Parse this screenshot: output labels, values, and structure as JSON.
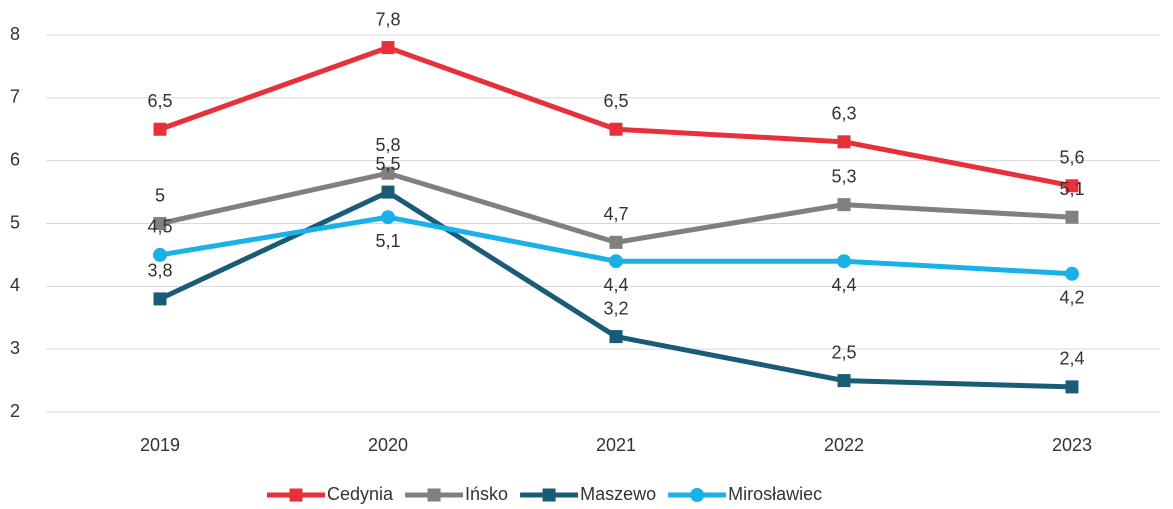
{
  "chart_data": {
    "type": "line",
    "categories": [
      "2019",
      "2020",
      "2021",
      "2022",
      "2023"
    ],
    "series": [
      {
        "name": "Cedynia",
        "color": "#e8303a",
        "marker": "square",
        "values": [
          6.5,
          7.8,
          6.5,
          6.3,
          5.6
        ],
        "value_labels": [
          "6,5",
          "7,8",
          "6,5",
          "6,3",
          "5,6"
        ]
      },
      {
        "name": "Ińsko",
        "color": "#808080",
        "marker": "square",
        "values": [
          5,
          5.8,
          4.7,
          5.3,
          5.1
        ],
        "value_labels": [
          "5",
          "5,8",
          "4,7",
          "5,3",
          "5,1"
        ]
      },
      {
        "name": "Maszewo",
        "color": "#1a5c78",
        "marker": "square",
        "values": [
          3.8,
          5.5,
          3.2,
          2.5,
          2.4
        ],
        "value_labels": [
          "3,8",
          "5,5",
          "3,2",
          "2,5",
          "2,4"
        ]
      },
      {
        "name": "Mirosławiec",
        "color": "#1ab0e8",
        "marker": "circle",
        "values": [
          4.5,
          5.1,
          4.4,
          4.4,
          4.2
        ],
        "value_labels": [
          "4,5",
          "5,1",
          "4,4",
          "4,4",
          "4,2"
        ]
      }
    ],
    "ylim": [
      2,
      8
    ],
    "yticks": [
      2,
      3,
      4,
      5,
      6,
      7,
      8
    ],
    "grid": true,
    "legend": "bottom"
  }
}
